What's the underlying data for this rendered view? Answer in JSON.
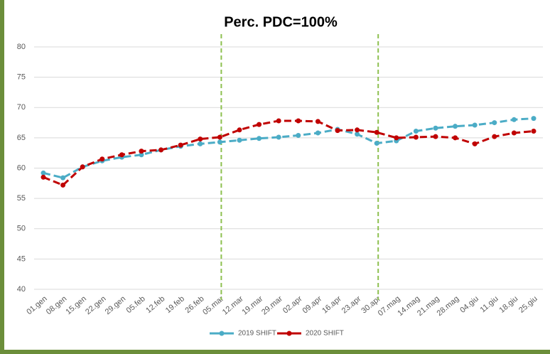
{
  "chart_data": {
    "type": "line",
    "title": "Perc. PDC=100%",
    "categories": [
      "01.gen",
      "08.gen",
      "15.gen",
      "22.gen",
      "29.gen",
      "05.feb",
      "12.feb",
      "19.feb",
      "26.feb",
      "05.mar",
      "12.mar",
      "19.mar",
      "29.mar",
      "02.apr",
      "09.apr",
      "16.apr",
      "23.apr",
      "30.apr",
      "07.mag",
      "14.mag",
      "21.mag",
      "28.mag",
      "04.giu",
      "11.giu",
      "18.giu",
      "25.giu"
    ],
    "series": [
      {
        "name": "2019 SHIFT",
        "color": "#4bacc6",
        "values": [
          59.2,
          58.4,
          60.2,
          61.2,
          61.8,
          62.2,
          63.0,
          63.6,
          64.0,
          64.3,
          64.6,
          64.9,
          65.1,
          65.4,
          65.8,
          66.4,
          65.6,
          64.1,
          64.5,
          66.1,
          66.6,
          66.9,
          67.1,
          67.5,
          68.0,
          68.2
        ]
      },
      {
        "name": "2020 SHIFT",
        "color": "#c00000",
        "values": [
          58.5,
          57.2,
          60.2,
          61.5,
          62.2,
          62.8,
          63.0,
          63.8,
          64.8,
          65.1,
          66.3,
          67.2,
          67.8,
          67.8,
          67.7,
          66.2,
          66.3,
          65.9,
          65.0,
          65.1,
          65.2,
          65.0,
          64.0,
          65.2,
          65.8,
          66.1
        ]
      }
    ],
    "ylim": [
      40,
      80
    ],
    "yticks": [
      40,
      45,
      50,
      55,
      60,
      65,
      70,
      75,
      80
    ],
    "grid": true,
    "vertical_lines_at": [
      "05.mar",
      "30.apr"
    ],
    "vertical_line_color": "#8dc04f",
    "legend": "bottom"
  }
}
